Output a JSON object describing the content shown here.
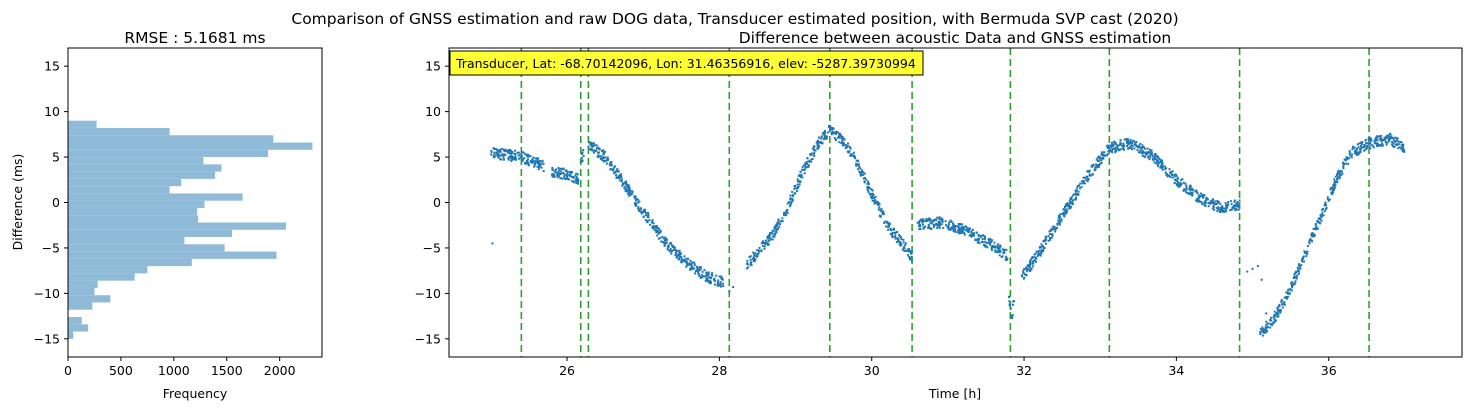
{
  "figure": {
    "suptitle": "Comparison of GNSS estimation and raw DOG data, Transducer estimated position, with Bermuda SVP cast (2020)"
  },
  "chart_data": [
    {
      "type": "bar",
      "orientation": "horizontal",
      "title": "RMSE : 5.1681 ms",
      "xlabel": "Frequency",
      "ylabel": "Difference (ms)",
      "xlim": [
        0,
        2400
      ],
      "ylim": [
        -17,
        17
      ],
      "xticks": [
        0,
        500,
        1000,
        1500,
        2000
      ],
      "yticks": [
        -15,
        -10,
        -5,
        0,
        5,
        10,
        15
      ],
      "color": "#8fbbd9",
      "bin_edges": [
        -15,
        -14.2,
        -13.4,
        -12.6,
        -11.8,
        -11,
        -10.2,
        -9.4,
        -8.6,
        -7.8,
        -7,
        -6.2,
        -5.4,
        -4.6,
        -3.8,
        -3,
        -2.2,
        -1.4,
        -0.6,
        0.2,
        1,
        1.8,
        2.6,
        3.4,
        4.2,
        5,
        5.8,
        6.6,
        7.4,
        8.2,
        9
      ],
      "counts": [
        50,
        190,
        130,
        0,
        230,
        400,
        250,
        280,
        630,
        750,
        1170,
        1970,
        1480,
        1100,
        1550,
        2060,
        1230,
        1220,
        1290,
        1650,
        960,
        1070,
        1390,
        1450,
        1280,
        1890,
        2310,
        1940,
        960,
        270
      ]
    },
    {
      "type": "scatter",
      "title": "Difference between acoustic Data and GNSS estimation",
      "xlabel": "Time [h]",
      "ylabel": "",
      "xlim": [
        24.45,
        37.75
      ],
      "ylim": [
        -17,
        17
      ],
      "xticks": [
        26,
        28,
        30,
        32,
        34,
        36
      ],
      "yticks": [
        -15,
        -10,
        -5,
        0,
        5,
        10,
        15
      ],
      "color": "#1f77b4",
      "annotation": "Transducer, Lat: -68.70142096, Lon: 31.46356916, elev: -5287.39730994",
      "annotation_style": {
        "background": "#ffff33",
        "border": "#000000"
      },
      "vlines": {
        "color": "#2ca02c",
        "style": "dashed",
        "x": [
          25.4,
          26.18,
          26.28,
          28.13,
          29.45,
          30.53,
          31.82,
          33.12,
          34.83,
          36.53
        ]
      },
      "series": [
        {
          "x": [
            25.0,
            25.4,
            25.7
          ],
          "y": [
            5.5,
            5.0,
            4.0
          ]
        },
        {
          "x": [
            25.8,
            26.05,
            26.15
          ],
          "y": [
            3.4,
            3.0,
            2.5
          ]
        },
        {
          "x": [
            26.18,
            26.22
          ],
          "y": [
            4.6,
            5.6
          ]
        },
        {
          "x": [
            26.28,
            26.5,
            26.8,
            27.0,
            27.3,
            27.6,
            27.85,
            28.05
          ],
          "y": [
            6.4,
            5.0,
            1.5,
            -1.0,
            -4.5,
            -6.8,
            -8.2,
            -8.8
          ]
        },
        {
          "x": [
            28.35,
            28.5,
            28.7,
            28.9,
            29.1,
            29.3,
            29.45,
            29.6,
            29.8,
            30.0,
            30.2,
            30.4,
            30.53
          ],
          "y": [
            -7.0,
            -5.5,
            -3.5,
            -0.5,
            3.5,
            6.5,
            8.0,
            7.0,
            4.5,
            1.0,
            -2.5,
            -4.5,
            -6.0
          ]
        },
        {
          "x": [
            30.6,
            30.9,
            31.2,
            31.5,
            31.78
          ],
          "y": [
            -2.5,
            -2.2,
            -3.0,
            -4.3,
            -5.8
          ]
        },
        {
          "x": [
            31.8,
            31.84,
            31.87
          ],
          "y": [
            -10.5,
            -12.8,
            -10.5
          ]
        },
        {
          "x": [
            31.95,
            32.2,
            32.5,
            32.8,
            33.12,
            33.4,
            33.7,
            34.0,
            34.3,
            34.6,
            34.83
          ],
          "y": [
            -8.5,
            -5.5,
            -1.5,
            2.5,
            6.0,
            6.5,
            5.0,
            2.5,
            0.5,
            -0.6,
            -0.3
          ]
        },
        {
          "x": [
            35.1,
            35.3,
            35.5,
            35.7,
            35.9,
            36.1,
            36.3,
            36.53,
            36.8,
            37.0
          ],
          "y": [
            -14.5,
            -12.5,
            -9.5,
            -5.5,
            -1.5,
            2.5,
            5.5,
            6.5,
            7.0,
            6.0
          ]
        }
      ],
      "sparse_points": [
        {
          "x": 25.02,
          "y": -4.5
        },
        {
          "x": 28.05,
          "y": -9.2
        },
        {
          "x": 28.13,
          "y": -9.8
        },
        {
          "x": 28.18,
          "y": -9.3
        },
        {
          "x": 34.93,
          "y": -7.6
        },
        {
          "x": 35.0,
          "y": -7.3
        },
        {
          "x": 35.07,
          "y": -7.0
        },
        {
          "x": 35.12,
          "y": -8.5
        },
        {
          "x": 35.18,
          "y": -12.2
        }
      ]
    }
  ]
}
